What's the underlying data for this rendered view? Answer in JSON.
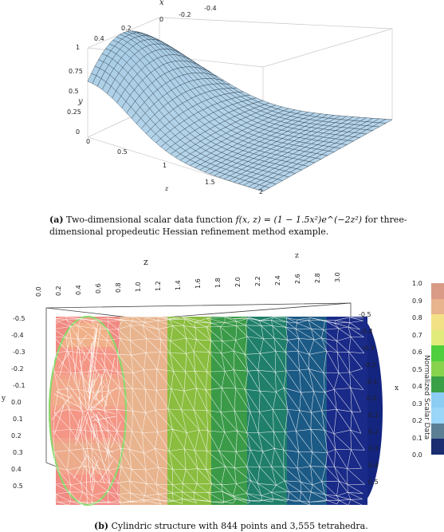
{
  "figure_a": {
    "x_label": "x",
    "y_label": "y",
    "z_label": "z",
    "x_ticks": [
      "-0.4",
      "-0.2",
      "0",
      "0.2",
      "0.4"
    ],
    "y_ticks": [
      "1",
      "0.75",
      "0.5",
      "0.25",
      "0"
    ],
    "z_ticks": [
      "0",
      "0.5",
      "1",
      "1.5",
      "2"
    ],
    "caption_tag": "(a)",
    "caption_text": "Two-dimensional scalar data function",
    "caption_math": "f(x, z) = (1 − 1.5x²)e^(−2z²)",
    "caption_rest": "for three-dimensional propedeutic Hessian refinement method example.",
    "surface_color": "#a9cde6",
    "chart_data": {
      "type": "surface",
      "function": "f(x,z) = (1 - 1.5x^2) e^(-2z^2)",
      "x_range": [
        -0.5,
        0.5
      ],
      "z_range": [
        0,
        2
      ],
      "y_range": [
        0,
        1
      ]
    }
  },
  "figure_b": {
    "z_label": "z",
    "y_label": "y",
    "x_label": "x",
    "top_ticks": [
      "0.0",
      "0.2",
      "0.4",
      "0.6",
      "0.8",
      "1.0",
      "1.2",
      "1.4",
      "1.6",
      "1.8",
      "2.0",
      "2.2",
      "2.4",
      "2.6",
      "2.8",
      "3.0"
    ],
    "left_ticks": [
      "-0.5",
      "-0.4",
      "-0.3",
      "-0.2",
      "-0.1",
      "0.0",
      "0.1",
      "0.2",
      "0.3",
      "0.4",
      "0.5"
    ],
    "right_ticks": [
      "-0.5",
      "-0.4",
      "-0.3",
      "-0.2",
      "-0.1",
      "0.0",
      "0.1",
      "0.2",
      "0.3",
      "0.4",
      "0.5"
    ],
    "colorbar_title": "Normalized Scalar Data",
    "colorbar_ticks": [
      "1.0",
      "0.9",
      "0.8",
      "0.7",
      "0.6",
      "0.5",
      "0.4",
      "0.3",
      "0.2",
      "0.1",
      "0.0"
    ],
    "colorbar_colors": [
      "#d99b86",
      "#e8b48e",
      "#f2e285",
      "#e0eb7c",
      "#4fcf3e",
      "#88d34e",
      "#3aa047",
      "#8ccdf4",
      "#9ad6f8",
      "#5b7f95",
      "#1a2d70"
    ],
    "caption_tag": "(b)",
    "caption_text": "Cylindric structure with 844 points and 3,555 tetrahedra."
  }
}
